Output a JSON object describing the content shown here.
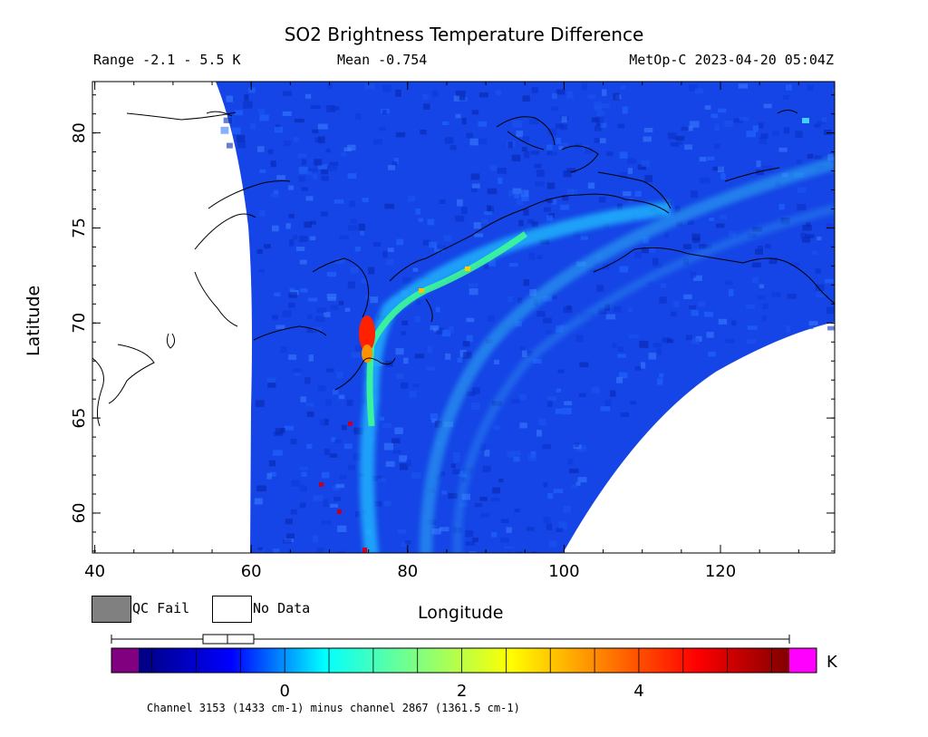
{
  "header": {
    "title": "SO2 Brightness Temperature Difference",
    "range": "Range -2.1 - 5.5 K",
    "mean": "Mean -0.754",
    "satellite_time": "MetOp-C 2023-04-20 05:04Z"
  },
  "axes": {
    "xlabel": "Longitude",
    "ylabel": "Latitude",
    "x_ticks": [
      "40",
      "60",
      "80",
      "100",
      "120"
    ],
    "y_ticks": [
      "60",
      "65",
      "70",
      "75",
      "80"
    ]
  },
  "legend": {
    "qc_fail": "QC Fail",
    "no_data": "No Data",
    "qc_fail_color": "#808080",
    "no_data_color": "#ffffff"
  },
  "colorbar": {
    "unit": "K",
    "tick_labels": [
      "0",
      "2",
      "4"
    ],
    "below_color": "#800080",
    "above_color": "#ff00ff",
    "colors": [
      "#000080",
      "#0000ff",
      "#00ffff",
      "#80ff80",
      "#ffff00",
      "#ff8000",
      "#ff0000",
      "#800000"
    ]
  },
  "footnote": "Channel 3153 (1433 cm-1) minus channel 2867 (1361.5 cm-1)",
  "map": {
    "lon_range": [
      39.7,
      134.6
    ],
    "lat_range": [
      57.9,
      82.7
    ],
    "swath_color": "#1040e0",
    "plume_peak_color": "#ff2000"
  }
}
